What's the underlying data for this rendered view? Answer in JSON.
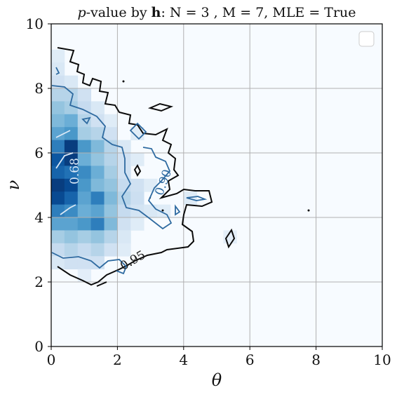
{
  "chart_data": {
    "type": "heatmap",
    "title": "p-value by h: N = 3 , M = 7, MLE = True",
    "title_parts": {
      "p": "p",
      "mid": "-value by ",
      "h": "h",
      "rest": ": N = 3 , M = 7, MLE = True"
    },
    "xlabel": "θ",
    "ylabel": "ν",
    "xlim": [
      0,
      10
    ],
    "ylim": [
      0,
      10
    ],
    "x_ticks": [
      "0",
      "2",
      "4",
      "6",
      "8",
      "10"
    ],
    "y_ticks": [
      "0",
      "2",
      "4",
      "6",
      "8",
      "10"
    ],
    "grid": true,
    "legend": "top-right (empty)",
    "colormap": "Blues",
    "grid_bins": 25,
    "contour_levels": [
      "0.68",
      "0.90",
      "0.95"
    ],
    "contour_colors": {
      "0.68": "#dbe9f6",
      "0.90": "#2e6aa0",
      "0.95": "#0b0b0b"
    },
    "cells": [
      {
        "x": 0.2,
        "y": 9.0,
        "v": 0.12
      },
      {
        "x": 0.2,
        "y": 8.6,
        "v": 0.15
      },
      {
        "x": 0.2,
        "y": 8.2,
        "v": 0.2
      },
      {
        "x": 0.2,
        "y": 7.8,
        "v": 0.3
      },
      {
        "x": 0.2,
        "y": 7.4,
        "v": 0.4
      },
      {
        "x": 0.2,
        "y": 7.0,
        "v": 0.45
      },
      {
        "x": 0.2,
        "y": 6.6,
        "v": 0.55
      },
      {
        "x": 0.2,
        "y": 6.2,
        "v": 0.7
      },
      {
        "x": 0.2,
        "y": 5.8,
        "v": 0.85
      },
      {
        "x": 0.2,
        "y": 5.4,
        "v": 0.8
      },
      {
        "x": 0.2,
        "y": 5.0,
        "v": 0.95
      },
      {
        "x": 0.2,
        "y": 4.6,
        "v": 0.9
      },
      {
        "x": 0.2,
        "y": 4.2,
        "v": 0.7
      },
      {
        "x": 0.2,
        "y": 3.8,
        "v": 0.55
      },
      {
        "x": 0.2,
        "y": 3.4,
        "v": 0.35
      },
      {
        "x": 0.2,
        "y": 3.0,
        "v": 0.25
      },
      {
        "x": 0.2,
        "y": 2.6,
        "v": 0.15
      },
      {
        "x": 0.6,
        "y": 8.2,
        "v": 0.15
      },
      {
        "x": 0.6,
        "y": 7.8,
        "v": 0.3
      },
      {
        "x": 0.6,
        "y": 7.4,
        "v": 0.35
      },
      {
        "x": 0.6,
        "y": 7.0,
        "v": 0.5
      },
      {
        "x": 0.6,
        "y": 6.6,
        "v": 0.6
      },
      {
        "x": 0.6,
        "y": 6.2,
        "v": 0.95
      },
      {
        "x": 0.6,
        "y": 5.8,
        "v": 0.95
      },
      {
        "x": 0.6,
        "y": 5.4,
        "v": 0.75
      },
      {
        "x": 0.6,
        "y": 5.0,
        "v": 0.9
      },
      {
        "x": 0.6,
        "y": 4.6,
        "v": 0.8
      },
      {
        "x": 0.6,
        "y": 4.2,
        "v": 0.65
      },
      {
        "x": 0.6,
        "y": 3.8,
        "v": 0.55
      },
      {
        "x": 0.6,
        "y": 3.4,
        "v": 0.4
      },
      {
        "x": 0.6,
        "y": 3.0,
        "v": 0.3
      },
      {
        "x": 0.6,
        "y": 2.6,
        "v": 0.2
      },
      {
        "x": 1.0,
        "y": 7.8,
        "v": 0.2
      },
      {
        "x": 1.0,
        "y": 7.4,
        "v": 0.25
      },
      {
        "x": 1.0,
        "y": 7.0,
        "v": 0.3
      },
      {
        "x": 1.0,
        "y": 6.6,
        "v": 0.35
      },
      {
        "x": 1.0,
        "y": 6.2,
        "v": 0.6
      },
      {
        "x": 1.0,
        "y": 5.8,
        "v": 0.5
      },
      {
        "x": 1.0,
        "y": 5.4,
        "v": 0.65
      },
      {
        "x": 1.0,
        "y": 5.0,
        "v": 0.6
      },
      {
        "x": 1.0,
        "y": 4.6,
        "v": 0.55
      },
      {
        "x": 1.0,
        "y": 4.2,
        "v": 0.5
      },
      {
        "x": 1.0,
        "y": 3.8,
        "v": 0.6
      },
      {
        "x": 1.0,
        "y": 3.4,
        "v": 0.35
      },
      {
        "x": 1.0,
        "y": 3.0,
        "v": 0.25
      },
      {
        "x": 1.0,
        "y": 2.6,
        "v": 0.2
      },
      {
        "x": 1.0,
        "y": 2.2,
        "v": 0.1
      },
      {
        "x": 1.4,
        "y": 7.4,
        "v": 0.15
      },
      {
        "x": 1.4,
        "y": 7.0,
        "v": 0.2
      },
      {
        "x": 1.4,
        "y": 6.6,
        "v": 0.3
      },
      {
        "x": 1.4,
        "y": 6.2,
        "v": 0.45
      },
      {
        "x": 1.4,
        "y": 5.8,
        "v": 0.4
      },
      {
        "x": 1.4,
        "y": 5.4,
        "v": 0.5
      },
      {
        "x": 1.4,
        "y": 5.0,
        "v": 0.45
      },
      {
        "x": 1.4,
        "y": 4.6,
        "v": 0.7
      },
      {
        "x": 1.4,
        "y": 4.2,
        "v": 0.55
      },
      {
        "x": 1.4,
        "y": 3.8,
        "v": 0.7
      },
      {
        "x": 1.4,
        "y": 3.4,
        "v": 0.4
      },
      {
        "x": 1.4,
        "y": 3.0,
        "v": 0.3
      },
      {
        "x": 1.4,
        "y": 2.6,
        "v": 0.2
      },
      {
        "x": 1.8,
        "y": 7.0,
        "v": 0.12
      },
      {
        "x": 1.8,
        "y": 6.6,
        "v": 0.2
      },
      {
        "x": 1.8,
        "y": 6.2,
        "v": 0.3
      },
      {
        "x": 1.8,
        "y": 5.8,
        "v": 0.3
      },
      {
        "x": 1.8,
        "y": 5.4,
        "v": 0.35
      },
      {
        "x": 1.8,
        "y": 5.0,
        "v": 0.4
      },
      {
        "x": 1.8,
        "y": 4.6,
        "v": 0.45
      },
      {
        "x": 1.8,
        "y": 4.2,
        "v": 0.4
      },
      {
        "x": 1.8,
        "y": 3.8,
        "v": 0.45
      },
      {
        "x": 1.8,
        "y": 3.4,
        "v": 0.3
      },
      {
        "x": 1.8,
        "y": 3.0,
        "v": 0.2
      },
      {
        "x": 2.2,
        "y": 6.2,
        "v": 0.15
      },
      {
        "x": 2.2,
        "y": 5.8,
        "v": 0.2
      },
      {
        "x": 2.2,
        "y": 5.4,
        "v": 0.2
      },
      {
        "x": 2.2,
        "y": 5.0,
        "v": 0.25
      },
      {
        "x": 2.2,
        "y": 4.6,
        "v": 0.3
      },
      {
        "x": 2.2,
        "y": 4.2,
        "v": 0.25
      },
      {
        "x": 2.2,
        "y": 3.8,
        "v": 0.2
      },
      {
        "x": 2.2,
        "y": 3.4,
        "v": 0.15
      },
      {
        "x": 2.2,
        "y": 3.0,
        "v": 0.12
      },
      {
        "x": 2.6,
        "y": 6.6,
        "v": 0.12
      },
      {
        "x": 2.6,
        "y": 5.8,
        "v": 0.12
      },
      {
        "x": 2.6,
        "y": 5.0,
        "v": 0.2
      },
      {
        "x": 2.6,
        "y": 4.6,
        "v": 0.22
      },
      {
        "x": 2.6,
        "y": 4.2,
        "v": 0.18
      },
      {
        "x": 2.6,
        "y": 3.8,
        "v": 0.12
      },
      {
        "x": 3.0,
        "y": 5.0,
        "v": 0.12
      },
      {
        "x": 3.0,
        "y": 4.2,
        "v": 0.15
      },
      {
        "x": 3.4,
        "y": 4.2,
        "v": 0.12
      },
      {
        "x": 4.2,
        "y": 4.6,
        "v": 0.12
      },
      {
        "x": 5.4,
        "y": 3.4,
        "v": 0.1
      }
    ]
  }
}
